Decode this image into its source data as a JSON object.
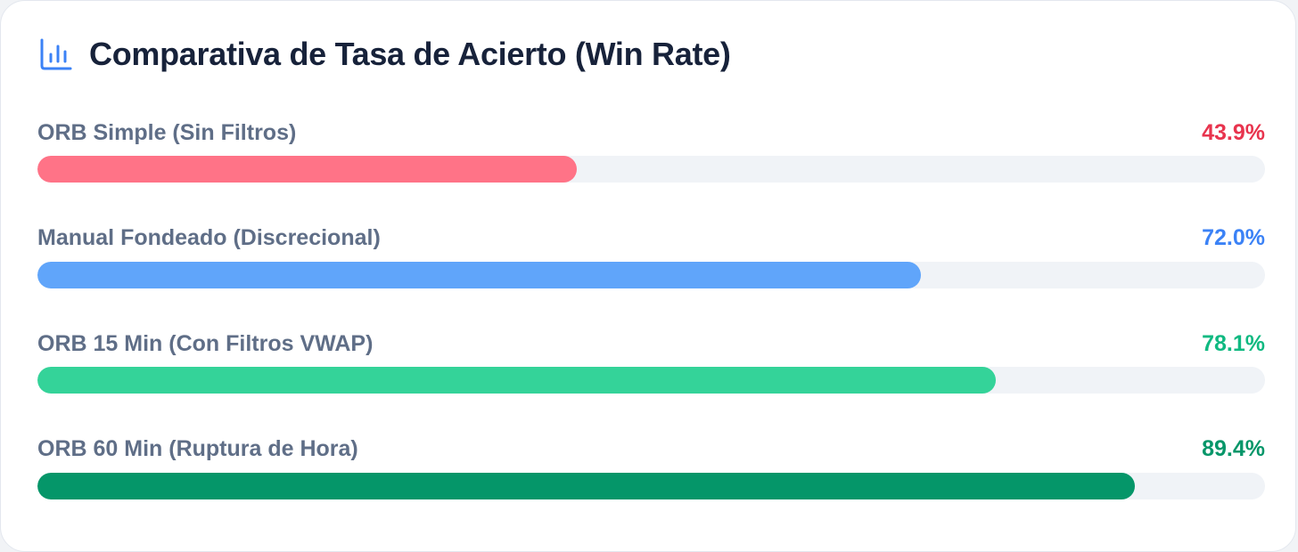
{
  "header": {
    "title": "Comparativa de Tasa de Acierto (Win Rate)",
    "icon": "bar-chart-icon",
    "icon_color": "#3b82f6"
  },
  "chart_data": {
    "type": "bar",
    "orientation": "horizontal",
    "title": "Comparativa de Tasa de Acierto (Win Rate)",
    "categories": [
      "ORB Simple (Sin Filtros)",
      "Manual Fondeado (Discrecional)",
      "ORB 15 Min (Con Filtros VWAP)",
      "ORB 60 Min (Ruptura de Hora)"
    ],
    "values": [
      43.9,
      72.0,
      78.1,
      89.4
    ],
    "value_labels": [
      "43.9%",
      "72.0%",
      "78.1%",
      "89.4%"
    ],
    "bar_colors": [
      "#ff7387",
      "#60a5fa",
      "#34d399",
      "#059669"
    ],
    "label_colors": [
      "#e8344e",
      "#3b82f6",
      "#10b981",
      "#059669"
    ],
    "xlim": [
      0,
      100
    ],
    "unit": "%",
    "grid": false,
    "legend": "none"
  }
}
